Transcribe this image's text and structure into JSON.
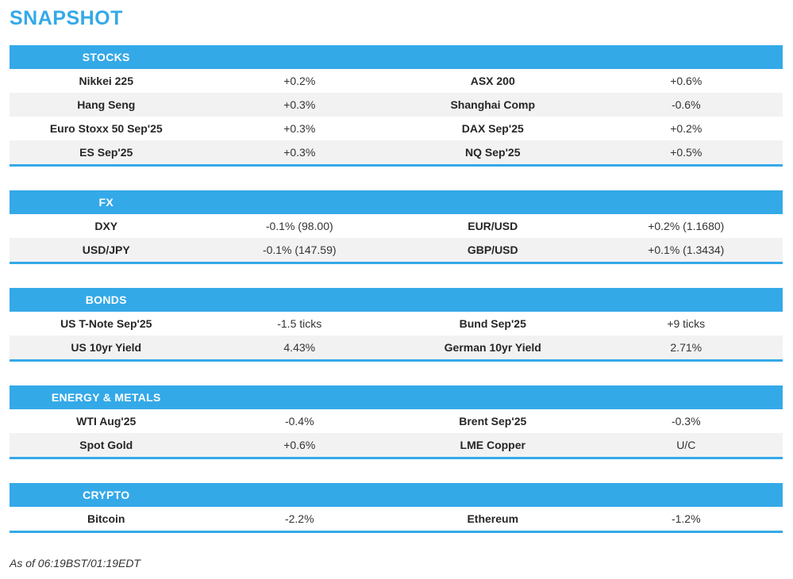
{
  "page": {
    "title": "SNAPSHOT",
    "footer": "As of 06:19BST/01:19EDT"
  },
  "colors": {
    "accent": "#34a9e8",
    "alt_row": "#f2f2f2",
    "header_text": "#ffffff",
    "label_text": "#262626",
    "value_text": "#333333",
    "footer_text": "#333333"
  },
  "sections": [
    {
      "label": "STOCKS",
      "rows": [
        [
          "Nikkei 225",
          "+0.2%",
          "ASX 200",
          "+0.6%"
        ],
        [
          "Hang Seng",
          "+0.3%",
          "Shanghai Comp",
          "-0.6%"
        ],
        [
          "Euro Stoxx 50 Sep'25",
          "+0.3%",
          "DAX Sep'25",
          "+0.2%"
        ],
        [
          "ES Sep'25",
          "+0.3%",
          "NQ Sep'25",
          "+0.5%"
        ]
      ]
    },
    {
      "label": "FX",
      "rows": [
        [
          "DXY",
          "-0.1% (98.00)",
          "EUR/USD",
          "+0.2% (1.1680)"
        ],
        [
          "USD/JPY",
          "-0.1% (147.59)",
          "GBP/USD",
          "+0.1% (1.3434)"
        ]
      ]
    },
    {
      "label": "BONDS",
      "rows": [
        [
          "US T-Note Sep'25",
          "-1.5 ticks",
          "Bund Sep'25",
          "+9 ticks"
        ],
        [
          "US 10yr Yield",
          "4.43%",
          "German 10yr Yield",
          "2.71%"
        ]
      ]
    },
    {
      "label": "ENERGY & METALS",
      "rows": [
        [
          "WTI Aug'25",
          "-0.4%",
          "Brent Sep'25",
          "-0.3%"
        ],
        [
          "Spot Gold",
          "+0.6%",
          "LME Copper",
          "U/C"
        ]
      ]
    },
    {
      "label": "CRYPTO",
      "rows": [
        [
          "Bitcoin",
          "-2.2%",
          "Ethereum",
          "-1.2%"
        ]
      ]
    }
  ]
}
